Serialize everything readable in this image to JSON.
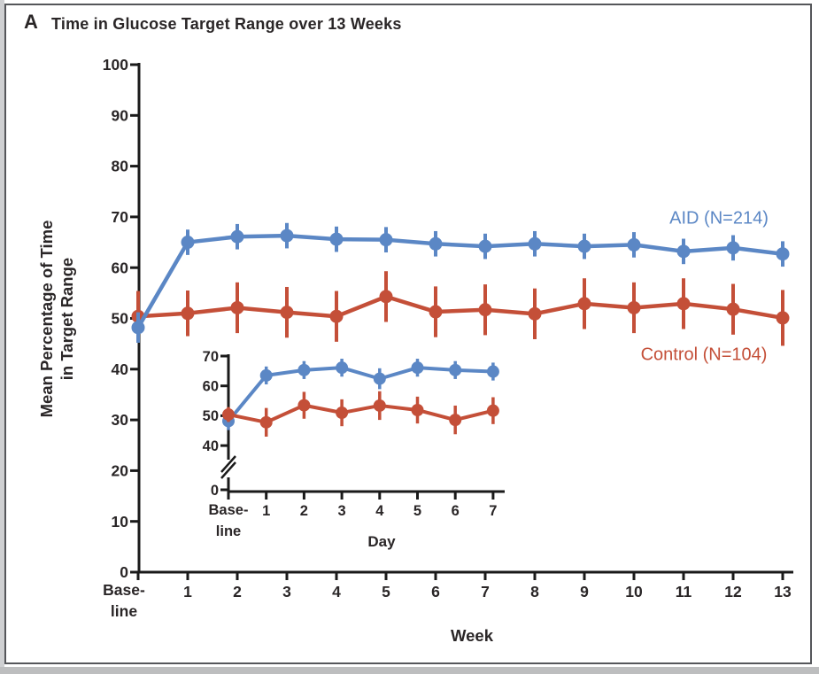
{
  "panel": {
    "label": "A",
    "title": "Time in Glucose Target Range over 13 Weeks"
  },
  "colors": {
    "aid": "#5b87c5",
    "control": "#c44f38",
    "axis": "#1a1a1a",
    "text": "#2a2627",
    "panel_border": "#55565a"
  },
  "chart_data": [
    {
      "id": "main",
      "type": "line",
      "title": "Time in Glucose Target Range over 13 Weeks",
      "xlabel": "Week",
      "ylabel": "Mean Percentage of Time in Target Range",
      "ylabel_lines": [
        "Mean Percentage of Time",
        "in Target Range"
      ],
      "baseline_label": [
        "Base-",
        "line"
      ],
      "categories": [
        "Baseline",
        "1",
        "2",
        "3",
        "4",
        "5",
        "6",
        "7",
        "8",
        "9",
        "10",
        "11",
        "12",
        "13"
      ],
      "y_ticks": [
        0,
        10,
        20,
        30,
        40,
        50,
        60,
        70,
        80,
        90,
        100
      ],
      "ylim": [
        0,
        100
      ],
      "grid": false,
      "error_bars": true,
      "legend_position": "inline-right",
      "series": [
        {
          "name": "Control (N=104)",
          "key": "control",
          "color": "#c44f38",
          "values": [
            50.4,
            51.0,
            52.1,
            51.2,
            50.4,
            54.3,
            51.3,
            51.7,
            50.9,
            52.9,
            52.1,
            52.9,
            51.8,
            50.1
          ],
          "errors": [
            5,
            4.5,
            5,
            5,
            5,
            5,
            5,
            5,
            5,
            5,
            5,
            5,
            5,
            5.5
          ]
        },
        {
          "name": "AID (N=214)",
          "key": "aid",
          "color": "#5b87c5",
          "values": [
            48.2,
            65.0,
            66.1,
            66.3,
            65.6,
            65.5,
            64.7,
            64.2,
            64.7,
            64.2,
            64.5,
            63.2,
            63.9,
            62.7
          ],
          "errors": [
            3,
            2.5,
            2.5,
            2.5,
            2.5,
            2.5,
            2.5,
            2.5,
            2.5,
            2.5,
            2.5,
            2.5,
            2.5,
            2.5
          ]
        }
      ]
    },
    {
      "id": "inset",
      "type": "line",
      "title": "",
      "xlabel": "Day",
      "ylabel": "",
      "baseline_label": [
        "Base-",
        "line"
      ],
      "categories": [
        "Baseline",
        "1",
        "2",
        "3",
        "4",
        "5",
        "6",
        "7"
      ],
      "y_ticks": [
        40,
        50,
        60,
        70
      ],
      "y_axis_break": true,
      "zero_label": "0",
      "ylim": [
        0,
        70
      ],
      "grid": false,
      "error_bars": true,
      "series": [
        {
          "name": "AID (N=214)",
          "key": "aid",
          "color": "#5b87c5",
          "values": [
            48.2,
            63.5,
            65.3,
            66.1,
            62.4,
            66.1,
            65.3,
            64.8
          ],
          "errors": [
            3,
            3,
            3,
            3,
            3.5,
            3,
            3,
            3
          ]
        },
        {
          "name": "Control (N=104)",
          "key": "control",
          "color": "#c44f38",
          "values": [
            50.4,
            47.8,
            53.5,
            51.0,
            53.4,
            51.9,
            48.6,
            51.7
          ],
          "errors": [
            2.5,
            4.8,
            4.5,
            4.5,
            4.8,
            4.5,
            4.8,
            4.5
          ]
        }
      ]
    }
  ]
}
